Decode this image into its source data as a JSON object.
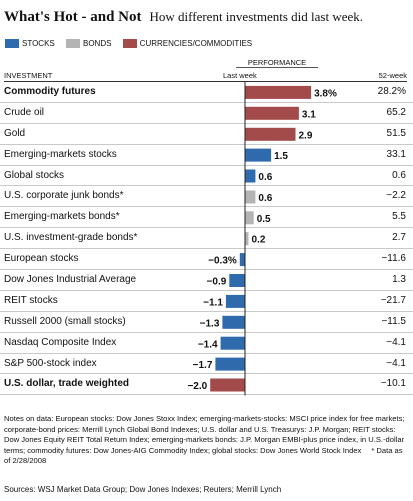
{
  "header": {
    "title": "What's Hot - and Not",
    "subtitle": "How different investments did last week."
  },
  "legend": [
    {
      "key": "stocks",
      "label": "STOCKS",
      "color": "#2e6aac"
    },
    {
      "key": "bonds",
      "label": "BONDS",
      "color": "#b4b4b4"
    },
    {
      "key": "currencies",
      "label": "CURRENCIES/COMMODITIES",
      "color": "#a34a4a"
    }
  ],
  "columns": {
    "performance": "PERFORMANCE",
    "investment": "INVESTMENT",
    "last_week": "Last week",
    "week52": "52-week"
  },
  "chart_data": {
    "type": "bar",
    "orientation": "horizontal",
    "unit": "%",
    "xlim": [
      -2.0,
      3.8
    ],
    "categories": [
      "Commodity futures",
      "Crude oil",
      "Gold",
      "Emerging-markets stocks",
      "Global stocks",
      "U.S. corporate junk bonds*",
      "Emerging-markets bonds*",
      "U.S. investment-grade bonds*",
      "European stocks",
      "Dow Jones Industrial Average",
      "REIT stocks",
      "Russell 2000 (small stocks)",
      "Nasdaq Composite Index",
      "S&P 500-stock index",
      "U.S. dollar, trade weighted"
    ],
    "groups": [
      "currencies",
      "currencies",
      "currencies",
      "stocks",
      "stocks",
      "bonds",
      "bonds",
      "bonds",
      "stocks",
      "stocks",
      "stocks",
      "stocks",
      "stocks",
      "stocks",
      "currencies"
    ],
    "values": [
      3.8,
      3.1,
      2.9,
      1.5,
      0.6,
      0.6,
      0.5,
      0.2,
      -0.3,
      -0.9,
      -1.1,
      -1.3,
      -1.4,
      -1.7,
      -2.0
    ],
    "value_labels": [
      "3.8%",
      "3.1",
      "2.9",
      "1.5",
      "0.6",
      "0.6",
      "0.5",
      "0.2",
      "−0.3%",
      "−0.9",
      "−1.1",
      "−1.3",
      "−1.4",
      "−1.7",
      "−2.0"
    ],
    "week52": [
      "28.2%",
      "65.2",
      "51.5",
      "33.1",
      "0.6",
      "−2.2",
      "5.5",
      "2.7",
      "−11.6",
      "1.3",
      "−21.7",
      "−11.5",
      "−4.1",
      "−4.1",
      "−10.1"
    ],
    "bold_labels": [
      true,
      false,
      false,
      false,
      false,
      false,
      false,
      false,
      false,
      false,
      false,
      false,
      false,
      false,
      true
    ]
  },
  "notes": {
    "text": "Notes on data: European stocks: Dow Jones Stoxx Index; emerging-markets-stocks: MSCI price index for free markets; corporate-bond prices: Merrill Lynch Global Bond Indexes; U.S. dollar and U.S. Treasurys: J.P. Morgan; REIT stocks: Dow Jones Equity REIT Total Return Index; emerging-markets bonds: J.P. Morgan EMBI-plus price index, in U.S.-dollar terms; commodity futures: Dow Jones-AIG Commodity Index; global stocks: Dow Jones World Stock Index",
    "asterisk_note": "* Data as of 2/28/2008"
  },
  "sources": "Sources: WSJ Market Data Group; Dow Jones Indexes; Reuters; Merrill Lynch"
}
